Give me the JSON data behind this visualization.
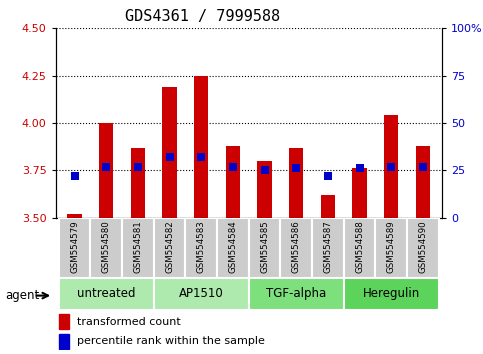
{
  "title": "GDS4361 / 7999588",
  "samples": [
    "GSM554579",
    "GSM554580",
    "GSM554581",
    "GSM554582",
    "GSM554583",
    "GSM554584",
    "GSM554585",
    "GSM554586",
    "GSM554587",
    "GSM554588",
    "GSM554589",
    "GSM554590"
  ],
  "red_values": [
    3.52,
    4.0,
    3.87,
    4.19,
    4.25,
    3.88,
    3.8,
    3.87,
    3.62,
    3.76,
    4.04,
    3.88
  ],
  "blue_values": [
    3.72,
    3.77,
    3.77,
    3.82,
    3.82,
    3.77,
    3.75,
    3.76,
    3.72,
    3.76,
    3.77,
    3.77
  ],
  "ylim": [
    3.5,
    4.5
  ],
  "yticks_left": [
    3.5,
    3.75,
    4.0,
    4.25,
    4.5
  ],
  "right_tick_positions": [
    3.5,
    3.75,
    4.0,
    4.25,
    4.5
  ],
  "right_labels": [
    "0",
    "25",
    "50",
    "75",
    "100%"
  ],
  "groups": [
    {
      "label": "untreated",
      "indices": [
        0,
        1,
        2
      ],
      "color": "#aeeaae"
    },
    {
      "label": "AP1510",
      "indices": [
        3,
        4,
        5
      ],
      "color": "#aeeaae"
    },
    {
      "label": "TGF-alpha",
      "indices": [
        6,
        7,
        8
      ],
      "color": "#7de07d"
    },
    {
      "label": "Heregulin",
      "indices": [
        9,
        10,
        11
      ],
      "color": "#5cd45c"
    }
  ],
  "bar_color": "#CC0000",
  "dot_color": "#0000CC",
  "bar_bottom": 3.5,
  "bar_width": 0.45,
  "dot_size": 28,
  "legend_red": "transformed count",
  "legend_blue": "percentile rank within the sample",
  "tick_label_color_left": "#CC0000",
  "tick_label_color_right": "#0000CC",
  "agent_label": "agent",
  "sample_box_color": "#cccccc",
  "title_fontsize": 11
}
